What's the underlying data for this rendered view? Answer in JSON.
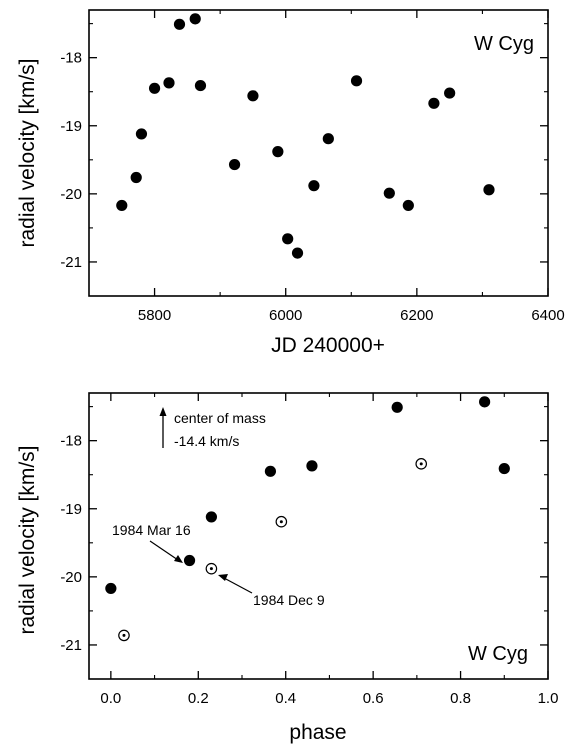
{
  "chart_data": [
    {
      "type": "scatter",
      "star": "W Cyg",
      "xlabel": "JD 240000+",
      "ylabel": "radial velocity [km/s]",
      "xlim": [
        5700,
        6400
      ],
      "ylim": [
        -21.5,
        -17.3
      ],
      "xticks": [
        5800,
        6000,
        6200,
        6400
      ],
      "yticks": [
        -18,
        -19,
        -20,
        -21
      ],
      "yticks_minor": [
        -17.5,
        -18.5,
        -19.5,
        -20.5
      ],
      "series": [
        {
          "marker": "filled-circle",
          "points": [
            {
              "x": 5750,
              "y": -20.17
            },
            {
              "x": 5772,
              "y": -19.76
            },
            {
              "x": 5780,
              "y": -19.12
            },
            {
              "x": 5800,
              "y": -18.45
            },
            {
              "x": 5822,
              "y": -18.37
            },
            {
              "x": 5838,
              "y": -17.51
            },
            {
              "x": 5862,
              "y": -17.43
            },
            {
              "x": 5870,
              "y": -18.41
            },
            {
              "x": 5922,
              "y": -19.57
            },
            {
              "x": 5950,
              "y": -18.56
            },
            {
              "x": 5988,
              "y": -19.38
            },
            {
              "x": 6003,
              "y": -20.66
            },
            {
              "x": 6018,
              "y": -20.87
            },
            {
              "x": 6043,
              "y": -19.88
            },
            {
              "x": 6065,
              "y": -19.19
            },
            {
              "x": 6108,
              "y": -18.34
            },
            {
              "x": 6158,
              "y": -19.99
            },
            {
              "x": 6187,
              "y": -20.17
            },
            {
              "x": 6226,
              "y": -18.67
            },
            {
              "x": 6250,
              "y": -18.52
            },
            {
              "x": 6310,
              "y": -19.94
            }
          ]
        }
      ]
    },
    {
      "type": "scatter",
      "star": "W Cyg",
      "xlabel": "phase",
      "ylabel": "radial velocity [km/s]",
      "xlim": [
        -0.05,
        1.0
      ],
      "ylim": [
        -21.5,
        -17.3
      ],
      "xticks": [
        "0.0",
        "0.2",
        "0.4",
        "0.6",
        "0.8",
        "1.0"
      ],
      "xtick_values": [
        0,
        0.2,
        0.4,
        0.6,
        0.8,
        1.0
      ],
      "yticks": [
        -18,
        -19,
        -20,
        -21
      ],
      "yticks_minor": [
        -17.5,
        -18.5,
        -19.5,
        -20.5
      ],
      "annotations": {
        "center_of_mass_line1": "center of mass",
        "center_of_mass_line2": "-14.4 km/s",
        "label_mar": "1984 Mar 16",
        "label_dec": "1984 Dec 9"
      },
      "series": [
        {
          "marker": "filled-circle",
          "points": [
            {
              "x": 0.0,
              "y": -20.17
            },
            {
              "x": 0.18,
              "y": -19.76
            },
            {
              "x": 0.23,
              "y": -19.12
            },
            {
              "x": 0.365,
              "y": -18.45
            },
            {
              "x": 0.46,
              "y": -18.37
            },
            {
              "x": 0.655,
              "y": -17.51
            },
            {
              "x": 0.855,
              "y": -17.43
            },
            {
              "x": 0.9,
              "y": -18.41
            }
          ]
        },
        {
          "marker": "dotted-circle",
          "points": [
            {
              "x": 0.03,
              "y": -20.86
            },
            {
              "x": 0.23,
              "y": -19.88
            },
            {
              "x": 0.39,
              "y": -19.19
            },
            {
              "x": 0.71,
              "y": -18.34
            }
          ]
        }
      ]
    }
  ]
}
